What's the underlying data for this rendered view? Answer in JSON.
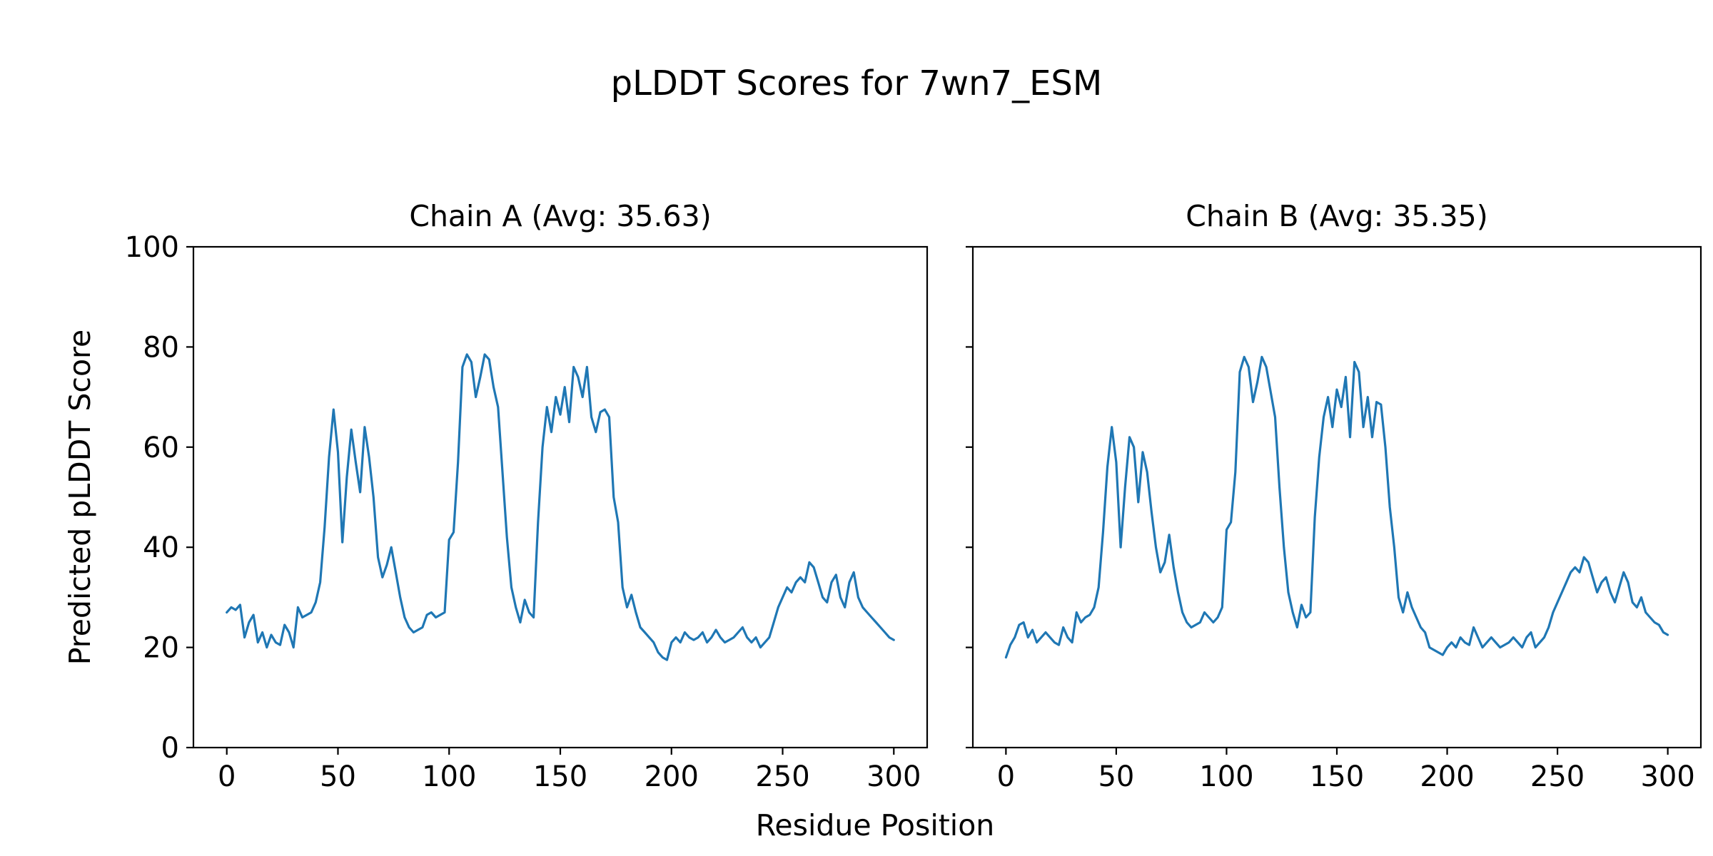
{
  "figure": {
    "title": "pLDDT Scores for 7wn7_ESM",
    "xlabel": "Residue Position",
    "ylabel": "Predicted pLDDT Score",
    "background_color": "#ffffff",
    "text_color": "#000000"
  },
  "chart_data": [
    {
      "type": "line",
      "title": "Chain A (Avg: 35.63)",
      "avg": 35.63,
      "line_color": "#1f77b4",
      "xlim": [
        -15,
        315
      ],
      "ylim": [
        0,
        100
      ],
      "xticks": [
        0,
        50,
        100,
        150,
        200,
        250,
        300
      ],
      "yticks": [
        0,
        20,
        40,
        60,
        80,
        100
      ],
      "grid": false,
      "legend": "none",
      "show_ytick_labels": true,
      "x": [
        0,
        2,
        4,
        6,
        8,
        10,
        12,
        14,
        16,
        18,
        20,
        22,
        24,
        26,
        28,
        30,
        32,
        34,
        36,
        38,
        40,
        42,
        44,
        46,
        48,
        50,
        52,
        54,
        56,
        58,
        60,
        62,
        64,
        66,
        68,
        70,
        72,
        74,
        76,
        78,
        80,
        82,
        84,
        86,
        88,
        90,
        92,
        94,
        96,
        98,
        100,
        102,
        104,
        106,
        108,
        110,
        112,
        114,
        116,
        118,
        120,
        122,
        124,
        126,
        128,
        130,
        132,
        134,
        136,
        138,
        140,
        142,
        144,
        146,
        148,
        150,
        152,
        154,
        156,
        158,
        160,
        162,
        164,
        166,
        168,
        170,
        172,
        174,
        176,
        178,
        180,
        182,
        184,
        186,
        188,
        190,
        192,
        194,
        196,
        198,
        200,
        202,
        204,
        206,
        208,
        210,
        212,
        214,
        216,
        218,
        220,
        222,
        224,
        226,
        228,
        230,
        232,
        234,
        236,
        238,
        240,
        242,
        244,
        246,
        248,
        250,
        252,
        254,
        256,
        258,
        260,
        262,
        264,
        266,
        268,
        270,
        272,
        274,
        276,
        278,
        280,
        282,
        284,
        286,
        288,
        290,
        292,
        294,
        296,
        298,
        300
      ],
      "y": [
        27,
        28,
        27.5,
        28.5,
        22,
        25,
        26.5,
        21,
        23,
        20,
        22.5,
        21,
        20.5,
        24.5,
        23,
        20,
        28,
        26,
        26.5,
        27,
        29,
        33,
        44,
        58,
        67.5,
        59,
        41,
        54,
        63.5,
        57,
        51,
        64,
        58,
        50,
        38,
        34,
        36.5,
        40,
        35,
        30,
        26,
        24,
        23,
        23.5,
        24,
        26.5,
        27,
        26,
        26.5,
        27,
        41.5,
        43,
        57,
        76,
        78.5,
        77,
        70,
        74,
        78.5,
        77.5,
        72,
        68,
        55,
        42,
        32,
        28,
        25,
        29.5,
        27,
        26,
        45,
        60,
        68,
        63,
        70,
        66.5,
        72,
        65,
        76,
        74,
        70,
        76,
        66,
        63,
        67,
        67.5,
        66,
        50,
        45,
        32,
        28,
        30.5,
        27,
        24,
        23,
        22,
        21,
        19,
        18,
        17.5,
        21,
        22,
        21,
        23,
        22,
        21.5,
        22,
        23,
        21,
        22,
        23.5,
        22,
        21,
        21.5,
        22,
        23,
        24,
        22,
        21,
        22,
        20,
        21,
        22,
        25,
        28,
        30,
        32,
        31,
        33,
        34,
        33,
        37,
        36,
        33,
        30,
        29,
        33,
        34.5,
        30,
        28,
        33,
        35,
        30,
        28,
        27,
        26,
        25,
        24,
        23,
        22,
        21.5
      ]
    },
    {
      "type": "line",
      "title": "Chain B (Avg: 35.35)",
      "avg": 35.35,
      "line_color": "#1f77b4",
      "xlim": [
        -15,
        315
      ],
      "ylim": [
        0,
        100
      ],
      "xticks": [
        0,
        50,
        100,
        150,
        200,
        250,
        300
      ],
      "yticks": [
        0,
        20,
        40,
        60,
        80,
        100
      ],
      "grid": false,
      "legend": "none",
      "show_ytick_labels": false,
      "x": [
        0,
        2,
        4,
        6,
        8,
        10,
        12,
        14,
        16,
        18,
        20,
        22,
        24,
        26,
        28,
        30,
        32,
        34,
        36,
        38,
        40,
        42,
        44,
        46,
        48,
        50,
        52,
        54,
        56,
        58,
        60,
        62,
        64,
        66,
        68,
        70,
        72,
        74,
        76,
        78,
        80,
        82,
        84,
        86,
        88,
        90,
        92,
        94,
        96,
        98,
        100,
        102,
        104,
        106,
        108,
        110,
        112,
        114,
        116,
        118,
        120,
        122,
        124,
        126,
        128,
        130,
        132,
        134,
        136,
        138,
        140,
        142,
        144,
        146,
        148,
        150,
        152,
        154,
        156,
        158,
        160,
        162,
        164,
        166,
        168,
        170,
        172,
        174,
        176,
        178,
        180,
        182,
        184,
        186,
        188,
        190,
        192,
        194,
        196,
        198,
        200,
        202,
        204,
        206,
        208,
        210,
        212,
        214,
        216,
        218,
        220,
        222,
        224,
        226,
        228,
        230,
        232,
        234,
        236,
        238,
        240,
        242,
        244,
        246,
        248,
        250,
        252,
        254,
        256,
        258,
        260,
        262,
        264,
        266,
        268,
        270,
        272,
        274,
        276,
        278,
        280,
        282,
        284,
        286,
        288,
        290,
        292,
        294,
        296,
        298,
        300
      ],
      "y": [
        18,
        20.5,
        22,
        24.5,
        25,
        22,
        23.5,
        21,
        22,
        23,
        22,
        21,
        20.5,
        24,
        22,
        21,
        27,
        25,
        26,
        26.5,
        28,
        32,
        43,
        56,
        64,
        57,
        40,
        52,
        62,
        60,
        49,
        59,
        55,
        47,
        40,
        35,
        37,
        42.5,
        36,
        31,
        27,
        25,
        24,
        24.5,
        25,
        27,
        26,
        25,
        26,
        28,
        43.5,
        45,
        55,
        75,
        78,
        76,
        69,
        73,
        78,
        76,
        71,
        66,
        52,
        40,
        31,
        27,
        24,
        28.5,
        26,
        27,
        46,
        58,
        66,
        70,
        64,
        71.5,
        68,
        74,
        62,
        77,
        75,
        64,
        70,
        62,
        69,
        68.5,
        60,
        48,
        40,
        30,
        27,
        31,
        28,
        26,
        24,
        23,
        20,
        19.5,
        19,
        18.5,
        20,
        21,
        20,
        22,
        21,
        20.5,
        24,
        22,
        20,
        21,
        22,
        21,
        20,
        20.5,
        21,
        22,
        21,
        20,
        22,
        23,
        20,
        21,
        22,
        24,
        27,
        29,
        31,
        33,
        35,
        36,
        35,
        38,
        37,
        34,
        31,
        33,
        34,
        31,
        29,
        32,
        35,
        33,
        29,
        28,
        30,
        27,
        26,
        25,
        24.5,
        23,
        22.5
      ]
    }
  ]
}
